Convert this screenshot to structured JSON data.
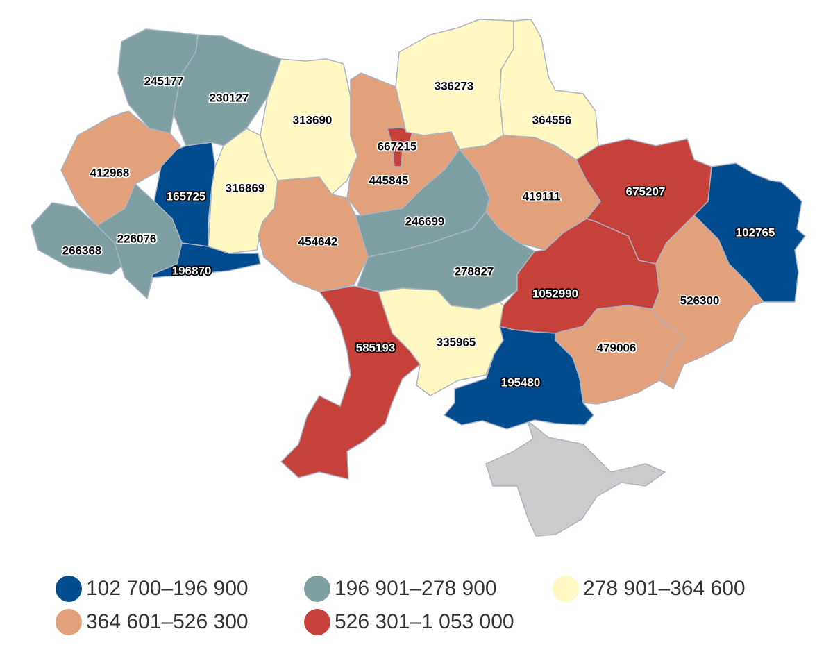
{
  "colors": {
    "c1": "#004c8f",
    "c2": "#7fa0a2",
    "c3": "#fff8c2",
    "c4": "#e2a07b",
    "c5": "#c6413a",
    "crimea": "#cbcbcb",
    "border": "#a9b3c3"
  },
  "regions": [
    {
      "id": "volyn",
      "value": "245177",
      "cls": "c2"
    },
    {
      "id": "rivne",
      "value": "230127",
      "cls": "c2"
    },
    {
      "id": "lviv",
      "value": "412968",
      "cls": "c4"
    },
    {
      "id": "ternopil",
      "value": "165725",
      "cls": "c1"
    },
    {
      "id": "zakarpattia",
      "value": "266368",
      "cls": "c2"
    },
    {
      "id": "ivano-frankivsk",
      "value": "226076",
      "cls": "c2"
    },
    {
      "id": "chernivtsi",
      "value": "196870",
      "cls": "c1"
    },
    {
      "id": "zhytomyr",
      "value": "313690",
      "cls": "c3"
    },
    {
      "id": "khmelnytskyi",
      "value": "316869",
      "cls": "c3"
    },
    {
      "id": "vinnytsia",
      "value": "454642",
      "cls": "c4"
    },
    {
      "id": "kyiv-oblast",
      "value": "445845",
      "cls": "c4"
    },
    {
      "id": "kyiv-city",
      "value": "667215",
      "cls": "c5"
    },
    {
      "id": "chernihiv",
      "value": "336273",
      "cls": "c3"
    },
    {
      "id": "sumy",
      "value": "364556",
      "cls": "c3"
    },
    {
      "id": "cherkasy",
      "value": "246699",
      "cls": "c2"
    },
    {
      "id": "poltava",
      "value": "419111",
      "cls": "c4"
    },
    {
      "id": "kharkiv",
      "value": "675207",
      "cls": "c5"
    },
    {
      "id": "luhansk",
      "value": "102765",
      "cls": "c1"
    },
    {
      "id": "kirovohrad",
      "value": "278827",
      "cls": "c2"
    },
    {
      "id": "dnipropetrovsk",
      "value": "1052990",
      "cls": "c5"
    },
    {
      "id": "donetsk",
      "value": "526300",
      "cls": "c4"
    },
    {
      "id": "zaporizhzhia",
      "value": "479006",
      "cls": "c4"
    },
    {
      "id": "mykolaiv",
      "value": "335965",
      "cls": "c3"
    },
    {
      "id": "odesa",
      "value": "585193",
      "cls": "c5"
    },
    {
      "id": "kherson",
      "value": "195480",
      "cls": "c1"
    }
  ],
  "legend": [
    {
      "label": "102 700–196 900",
      "cls": "c1"
    },
    {
      "label": "196 901–278 900",
      "cls": "c2"
    },
    {
      "label": "278 901–364 600",
      "cls": "c3"
    },
    {
      "label": "364 601–526 300",
      "cls": "c4"
    },
    {
      "label": "526 301–1 053 000",
      "cls": "c5"
    }
  ]
}
